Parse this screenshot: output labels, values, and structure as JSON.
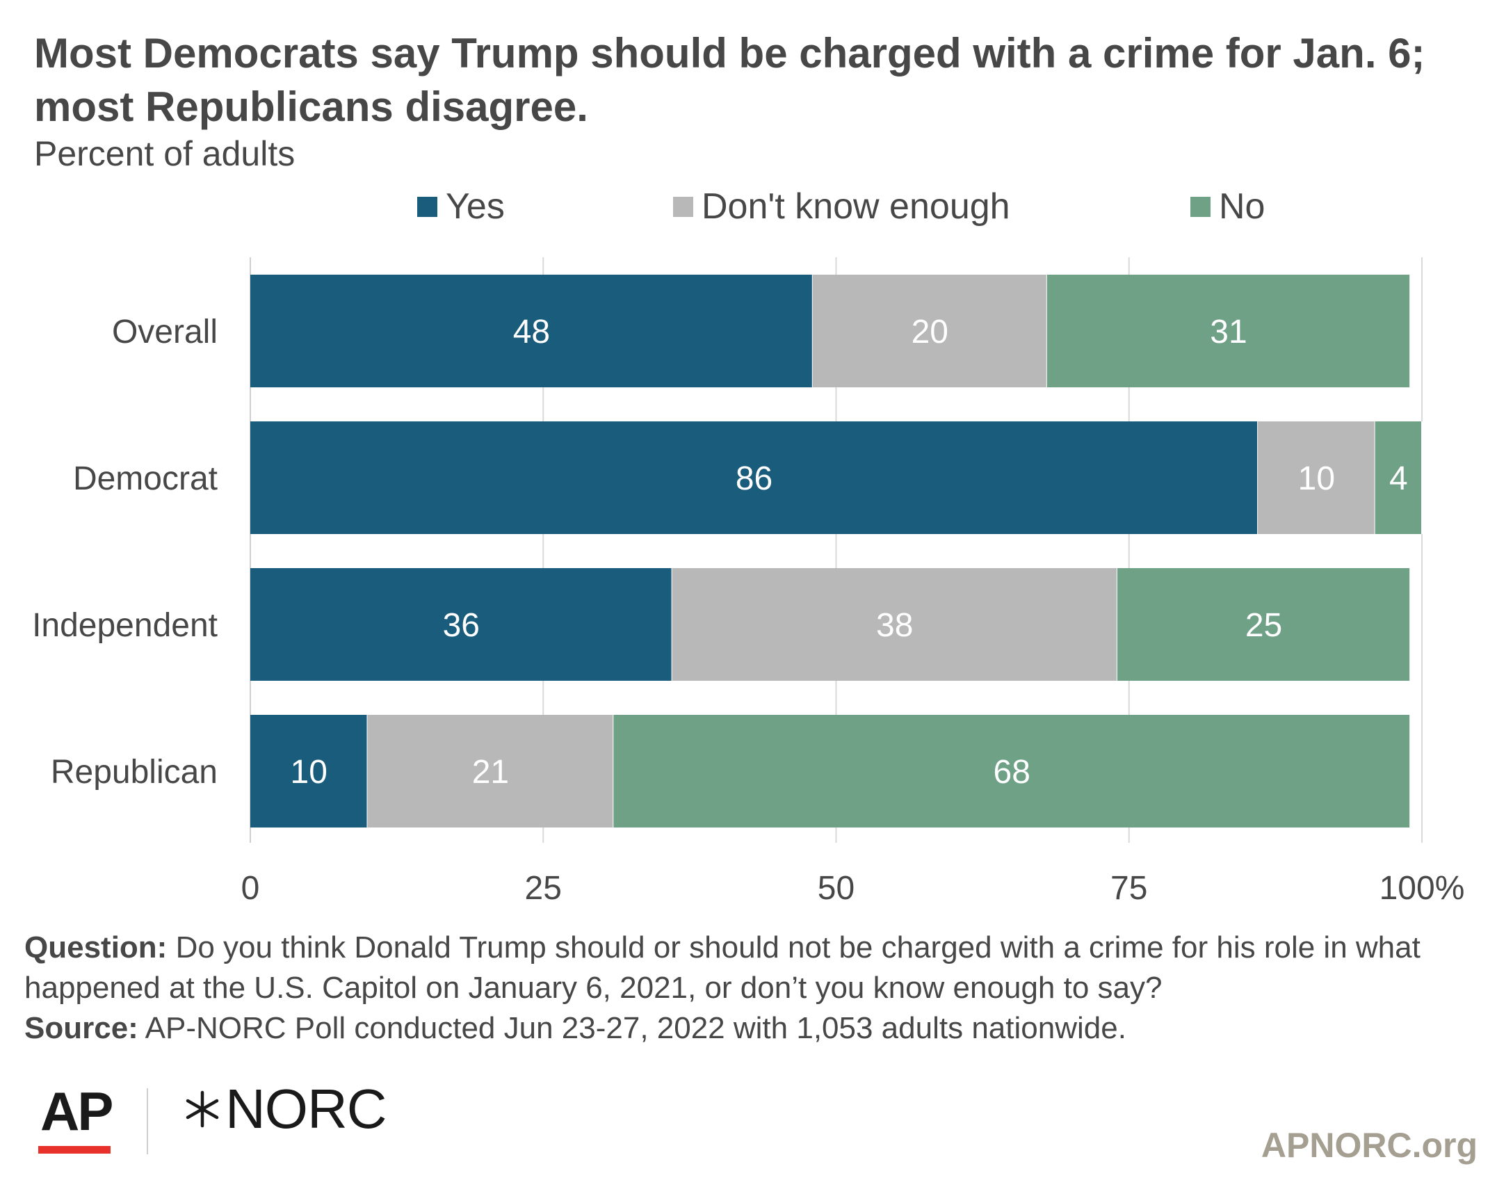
{
  "header": {
    "title": "Most Democrats say Trump should be charged with a crime for Jan. 6; most Republicans disagree.",
    "subtitle": "Percent of adults"
  },
  "chart_data": {
    "type": "bar",
    "orientation": "horizontal",
    "stacked": true,
    "title": "Most Democrats say Trump should be charged with a crime for Jan. 6; most Republicans disagree.",
    "subtitle": "Percent of adults",
    "categories": [
      "Overall",
      "Democrat",
      "Independent",
      "Republican"
    ],
    "series": [
      {
        "name": "Yes",
        "color": "#1a5c7c",
        "values": [
          48,
          86,
          36,
          10
        ]
      },
      {
        "name": "Don't know enough",
        "color": "#b8b8b8",
        "values": [
          20,
          10,
          38,
          21
        ]
      },
      {
        "name": "No",
        "color": "#6fa187",
        "values": [
          31,
          4,
          25,
          68
        ]
      }
    ],
    "xlim": [
      0,
      100
    ],
    "xticks": [
      0,
      25,
      50,
      75,
      100
    ],
    "xtick_labels": [
      "0",
      "25",
      "50",
      "75",
      "100%"
    ],
    "grid": true,
    "legend": "top"
  },
  "footer": {
    "question_label": "Question:",
    "question_text": "Do you think Donald Trump should or should not be charged with a crime for his role in what happened at the U.S. Capitol on January 6, 2021, or don’t you know enough to say?",
    "source_label": "Source:",
    "source_text": "AP-NORC Poll conducted Jun 23-27, 2022 with 1,053 adults nationwide."
  },
  "branding": {
    "ap_logo": "AP",
    "norc_logo": "NORC",
    "site": "APNORC.org",
    "ap_red": "#e8312a"
  }
}
